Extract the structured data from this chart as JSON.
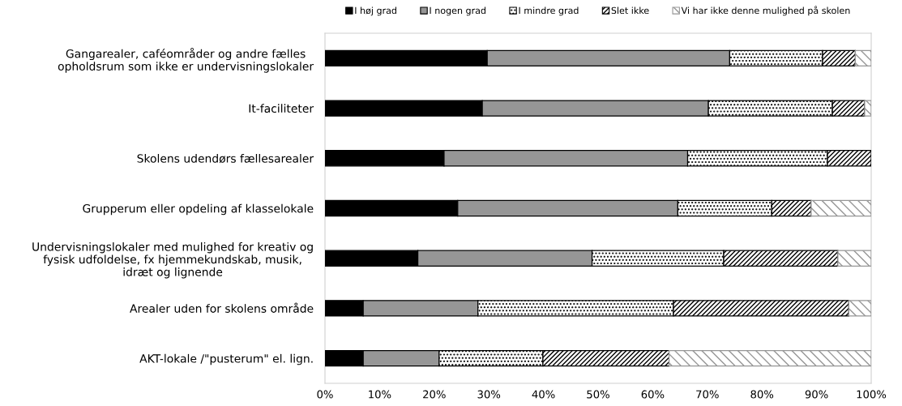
{
  "chart_data": {
    "type": "bar",
    "orientation": "horizontal",
    "stacked": true,
    "categories": [
      "Gangarealer, caféområder og andre fælles\nopholdsrum som ikke er undervisningslokaler",
      "It-faciliteter",
      "Skolens udendørs fællesarealer",
      "Grupperum eller opdeling af klasselokale",
      "Undervisningslokaler med mulighed for kreativ og\nfysisk udfoldelse, fx hjemmekundskab, musik,\nidræt og lignende",
      "Arealer uden for skolens område",
      "AKT-lokale /\"pusterum\" el. lign."
    ],
    "series": [
      {
        "name": "I høj grad",
        "color": "#000000",
        "values": [
          29.7,
          28.8,
          21.8,
          24.3,
          17.0,
          7.0,
          7.0
        ]
      },
      {
        "name": "I nogen grad",
        "color": "#969696",
        "values": [
          44.4,
          41.4,
          44.6,
          40.3,
          31.9,
          21.0,
          13.9
        ]
      },
      {
        "name": "I mindre grad",
        "color": "#000000",
        "values": [
          17.0,
          22.7,
          25.6,
          17.2,
          24.1,
          35.8,
          19.0
        ]
      },
      {
        "name": "Slet ikke",
        "color": "#000000",
        "values": [
          6.0,
          5.9,
          8.0,
          7.2,
          20.9,
          32.1,
          23.1
        ]
      },
      {
        "name": "Vi har ikke denne mulighed på skolen",
        "color": "#969696",
        "values": [
          2.9,
          1.2,
          null,
          11.0,
          6.1,
          4.1,
          37.0
        ]
      }
    ],
    "xlim": [
      0,
      100
    ],
    "xticks": [
      {
        "value": 0,
        "label": "0%"
      },
      {
        "value": 10,
        "label": "10%"
      },
      {
        "value": 20,
        "label": "20%"
      },
      {
        "value": 30,
        "label": "30%"
      },
      {
        "value": 40,
        "label": "40%"
      },
      {
        "value": 50,
        "label": "50%"
      },
      {
        "value": 60,
        "label": "60%"
      },
      {
        "value": 70,
        "label": "70%"
      },
      {
        "value": 80,
        "label": "80%"
      },
      {
        "value": 90,
        "label": "90%"
      },
      {
        "value": 100,
        "label": "100%"
      }
    ],
    "grid": false,
    "legend": "top"
  }
}
